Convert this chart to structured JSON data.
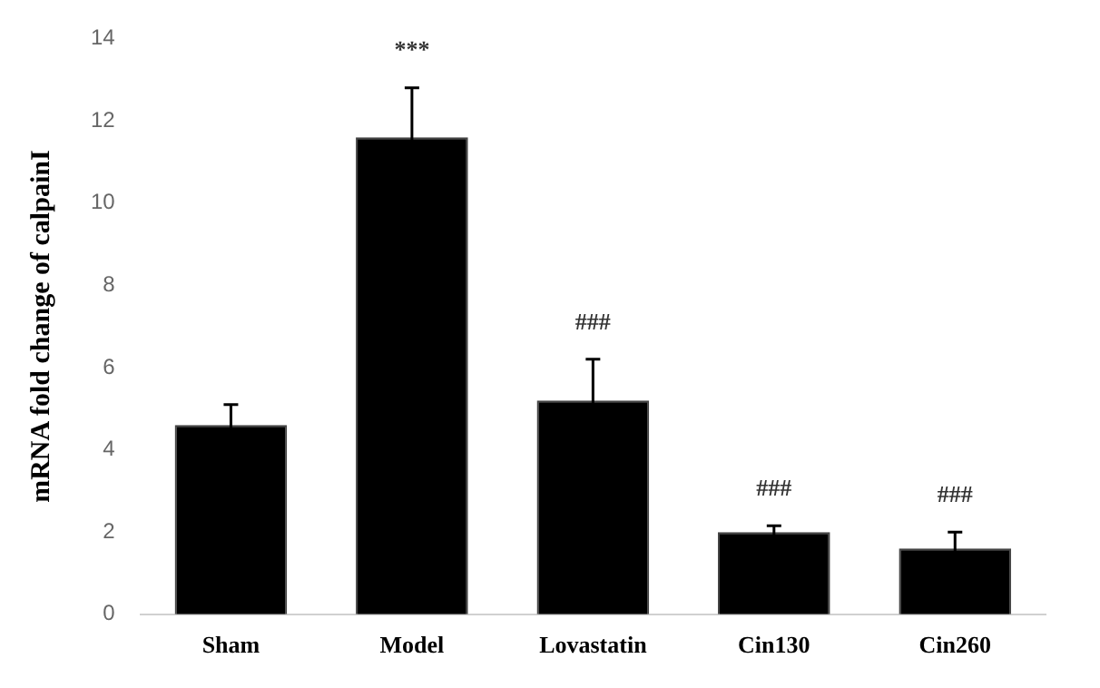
{
  "chart_data": {
    "type": "bar",
    "ylabel": "mRNA fold change of calpainI",
    "categories": [
      "Sham",
      "Model",
      "Lovastatin",
      "Cin130",
      "Cin260"
    ],
    "values": [
      4.6,
      11.6,
      5.2,
      2.0,
      1.6
    ],
    "color": "#000000",
    "errors": [
      0.5,
      1.2,
      1.0,
      0.15,
      0.4
    ],
    "ylim": [
      0,
      14
    ],
    "yticks": [
      0,
      2,
      4,
      6,
      8,
      10,
      12,
      14
    ],
    "grid": false,
    "legend": false,
    "annotations": [
      "***",
      "###",
      "###",
      "###"
    ]
  }
}
